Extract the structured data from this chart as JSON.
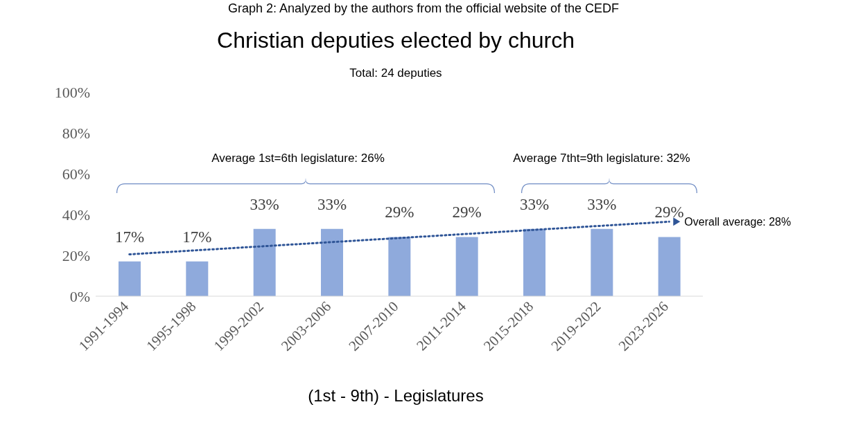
{
  "chart_data": {
    "type": "bar",
    "title": "Christian deputies elected by church",
    "subtitle": "Total: 24 deputies",
    "xlabel": "(1st - 9th) - Legislatures",
    "categories": [
      "1991-1994",
      "1995-1998",
      "1999-2002",
      "2003-2006",
      "2007-2010",
      "2011-2014",
      "2015-2018",
      "2019-2022",
      "2023-2026"
    ],
    "series": [
      {
        "color": "#8faadc",
        "values": [
          17,
          17,
          33,
          33,
          29,
          29,
          33,
          33,
          29
        ],
        "value_labels": [
          "17%",
          "17%",
          "33%",
          "33%",
          "29%",
          "29%",
          "33%",
          "33%",
          "29%"
        ]
      },
      {
        "type": "line",
        "name": "Overall average: 28%",
        "color": "#2f5597",
        "values": [
          20.5,
          22.5,
          24.5,
          26.5,
          28.5,
          30.5,
          32.5,
          34.5,
          36.5
        ],
        "line_style": "dotted"
      }
    ],
    "ylim": [
      0,
      100
    ],
    "yticks": [
      {
        "value": 0,
        "label": "0%"
      },
      {
        "value": 20,
        "label": "20%"
      },
      {
        "value": 40,
        "label": "40%"
      },
      {
        "value": 60,
        "label": "60%"
      },
      {
        "value": 80,
        "label": "80%"
      },
      {
        "value": 100,
        "label": "100%"
      }
    ],
    "grid": false,
    "legend": false,
    "marker": "none",
    "annotations": [
      "Graph 2: Analyzed by the authors from the official website of the CEDF",
      "Average 1st=6th legislature: 26%",
      "Average 7tht=9th legislature: 32%"
    ]
  }
}
